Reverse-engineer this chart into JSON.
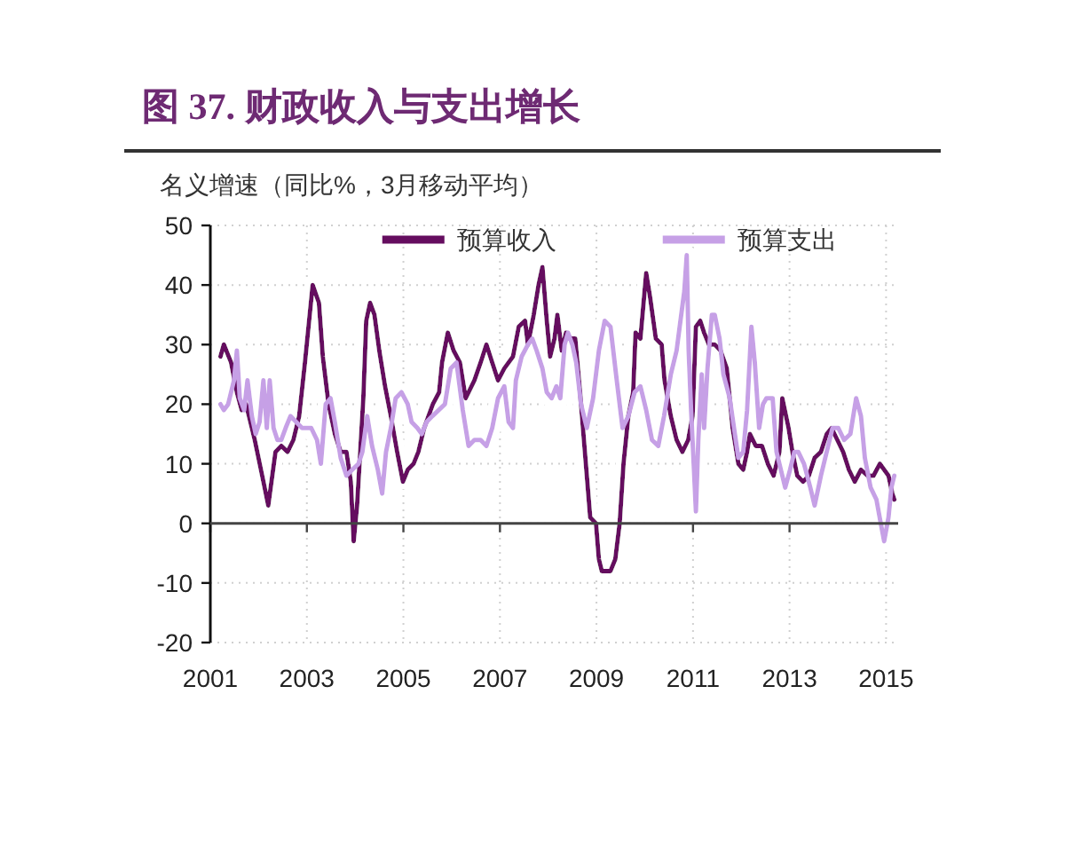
{
  "chart_data": {
    "type": "line",
    "title": "图 37. 财政收入与支出增长",
    "ylabel": "名义增速（同比%，3月移动平均）",
    "xlim": [
      2001,
      2015.25
    ],
    "xticks": [
      2001,
      2003,
      2005,
      2007,
      2009,
      2011,
      2013,
      2015
    ],
    "ylim": [
      -20,
      50
    ],
    "yticks": [
      -20,
      -10,
      0,
      10,
      20,
      30,
      40,
      50
    ],
    "grid": true,
    "legend": "top",
    "series": [
      {
        "name": "预算收入",
        "color": "#650d5f",
        "x": [
          2001.21,
          2001.28,
          2001.43,
          2001.55,
          2001.65,
          2001.74,
          2001.92,
          2002.1,
          2002.2,
          2002.35,
          2002.47,
          2002.6,
          2002.72,
          2002.84,
          2002.96,
          2003.12,
          2003.25,
          2003.33,
          2003.45,
          2003.58,
          2003.7,
          2003.82,
          2003.91,
          2003.97,
          2004.04,
          2004.17,
          2004.23,
          2004.31,
          2004.4,
          2004.5,
          2004.62,
          2004.74,
          2004.87,
          2004.99,
          2005.09,
          2005.21,
          2005.31,
          2005.43,
          2005.61,
          2005.74,
          2005.8,
          2005.92,
          2006.04,
          2006.17,
          2006.29,
          2006.47,
          2006.6,
          2006.72,
          2006.84,
          2006.96,
          2007.09,
          2007.27,
          2007.39,
          2007.52,
          2007.58,
          2007.7,
          2007.8,
          2007.88,
          2007.97,
          2008.04,
          2008.13,
          2008.19,
          2008.28,
          2008.37,
          2008.47,
          2008.56,
          2008.66,
          2008.74,
          2008.87,
          2008.99,
          2009.05,
          2009.11,
          2009.29,
          2009.39,
          2009.48,
          2009.56,
          2009.66,
          2009.76,
          2009.81,
          2009.91,
          2010.03,
          2010.11,
          2010.23,
          2010.35,
          2010.41,
          2010.54,
          2010.66,
          2010.78,
          2010.9,
          2010.99,
          2011.06,
          2011.15,
          2011.23,
          2011.33,
          2011.45,
          2011.57,
          2011.7,
          2011.82,
          2011.94,
          2012.04,
          2012.12,
          2012.18,
          2012.3,
          2012.43,
          2012.55,
          2012.67,
          2012.79,
          2012.85,
          2012.98,
          2013.06,
          2013.16,
          2013.28,
          2013.4,
          2013.52,
          2013.65,
          2013.77,
          2013.87,
          2013.99,
          2014.11,
          2014.23,
          2014.35,
          2014.48,
          2014.62,
          2014.74,
          2014.87,
          2014.96,
          2015.05,
          2015.13,
          2015.17
        ],
        "values": [
          28,
          30,
          27,
          22,
          19,
          20,
          14,
          7,
          3,
          12,
          13,
          12,
          14,
          18,
          27,
          40,
          37,
          28,
          20,
          15,
          12,
          12,
          7,
          -3,
          3,
          21,
          34,
          37,
          35,
          29,
          23,
          18,
          12,
          7,
          9,
          10,
          12,
          16,
          20,
          22,
          27,
          32,
          29,
          27,
          21,
          24,
          27,
          30,
          27,
          24,
          26,
          28,
          33,
          34,
          30,
          35,
          40,
          43,
          34,
          28,
          31,
          35,
          29,
          32,
          31,
          31,
          22,
          14,
          1,
          0,
          -6,
          -8,
          -8,
          -6,
          0,
          10,
          18,
          22,
          32,
          31,
          42,
          38,
          31,
          30,
          24,
          18,
          14,
          12,
          14,
          18,
          33,
          34,
          32,
          30,
          30,
          29,
          26,
          16,
          10,
          9,
          12,
          15,
          13,
          13,
          10,
          8,
          12,
          21,
          16,
          12,
          8,
          7,
          8,
          11,
          12,
          15,
          16,
          14,
          12,
          9,
          7,
          9,
          8,
          8,
          10,
          9,
          8,
          5,
          4
        ]
      },
      {
        "name": "预算支出",
        "color": "#c6a0e6",
        "x": [
          2001.21,
          2001.28,
          2001.37,
          2001.49,
          2001.55,
          2001.61,
          2001.7,
          2001.77,
          2001.86,
          2001.94,
          2002.02,
          2002.1,
          2002.17,
          2002.23,
          2002.31,
          2002.39,
          2002.47,
          2002.56,
          2002.66,
          2002.78,
          2002.9,
          2003.09,
          2003.21,
          2003.29,
          2003.39,
          2003.49,
          2003.58,
          2003.7,
          2003.82,
          2003.94,
          2004.07,
          2004.15,
          2004.25,
          2004.35,
          2004.47,
          2004.56,
          2004.64,
          2004.74,
          2004.84,
          2004.96,
          2005.09,
          2005.17,
          2005.29,
          2005.38,
          2005.48,
          2005.6,
          2005.86,
          2005.98,
          2006.1,
          2006.23,
          2006.35,
          2006.47,
          2006.6,
          2006.72,
          2006.84,
          2006.96,
          2007.09,
          2007.18,
          2007.27,
          2007.33,
          2007.45,
          2007.58,
          2007.67,
          2007.76,
          2007.88,
          2007.97,
          2008.07,
          2008.17,
          2008.25,
          2008.34,
          2008.41,
          2008.5,
          2008.58,
          2008.68,
          2008.8,
          2008.93,
          2009.05,
          2009.17,
          2009.29,
          2009.42,
          2009.54,
          2009.66,
          2009.79,
          2009.91,
          2010.03,
          2010.15,
          2010.28,
          2010.4,
          2010.54,
          2010.66,
          2010.74,
          2010.82,
          2010.87,
          2010.91,
          2010.96,
          2011.02,
          2011.06,
          2011.11,
          2011.18,
          2011.23,
          2011.3,
          2011.39,
          2011.45,
          2011.55,
          2011.63,
          2011.76,
          2011.85,
          2011.94,
          2012.04,
          2012.12,
          2012.21,
          2012.28,
          2012.37,
          2012.45,
          2012.52,
          2012.65,
          2012.73,
          2012.82,
          2012.91,
          2013.01,
          2013.1,
          2013.18,
          2013.3,
          2013.43,
          2013.52,
          2013.65,
          2013.77,
          2013.89,
          2014.01,
          2014.13,
          2014.26,
          2014.38,
          2014.48,
          2014.56,
          2014.68,
          2014.8,
          2014.89,
          2014.96,
          2015.05,
          2015.11,
          2015.17
        ],
        "values": [
          20,
          19,
          20,
          24,
          29,
          21,
          19,
          24,
          18,
          15,
          17,
          24,
          16,
          24,
          16,
          14,
          14,
          16,
          18,
          17,
          16,
          16,
          14,
          10,
          20,
          21,
          17,
          11,
          8,
          9,
          10,
          12,
          18,
          13,
          9,
          5,
          12,
          16,
          21,
          22,
          20,
          17,
          16,
          15,
          17,
          18,
          20,
          26,
          27,
          19,
          13,
          14,
          14,
          13,
          16,
          21,
          23,
          17,
          16,
          24,
          28,
          30,
          31,
          29,
          26,
          22,
          21,
          23,
          21,
          30,
          32,
          30,
          27,
          20,
          16,
          21,
          29,
          34,
          33,
          24,
          16,
          18,
          22,
          23,
          19,
          14,
          13,
          18,
          25,
          29,
          34,
          39,
          45,
          29,
          19,
          9,
          2,
          14,
          25,
          16,
          26,
          35,
          35,
          31,
          25,
          21,
          16,
          11,
          12,
          19,
          33,
          27,
          16,
          20,
          21,
          21,
          12,
          9,
          6,
          9,
          12,
          12,
          10,
          6,
          3,
          8,
          12,
          16,
          16,
          14,
          15,
          21,
          18,
          11,
          6,
          4,
          0,
          -3,
          1,
          6,
          8
        ]
      }
    ]
  }
}
